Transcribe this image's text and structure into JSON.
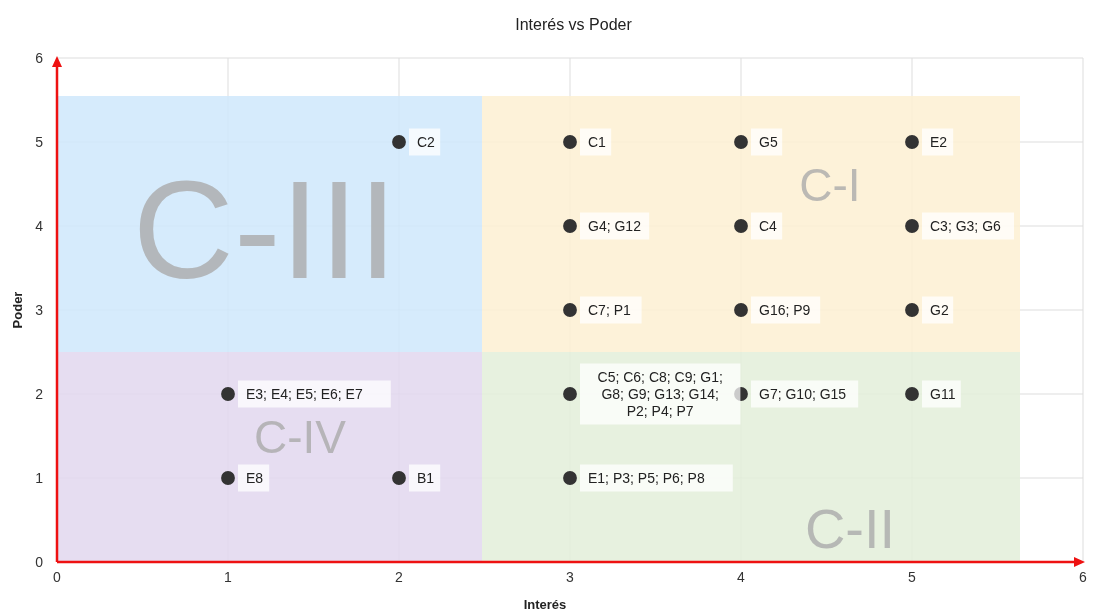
{
  "chart_data": {
    "type": "scatter",
    "title": "Interés vs Poder",
    "xlabel": "Interés",
    "ylabel": "Poder",
    "xlim": [
      0,
      6
    ],
    "ylim": [
      0,
      6
    ],
    "xticks": [
      0,
      1,
      2,
      3,
      4,
      5,
      6
    ],
    "yticks": [
      0,
      1,
      2,
      3,
      4,
      5,
      6
    ],
    "grid": true,
    "marker": "circle",
    "annotations": [
      "C-III",
      "C-I",
      "C-IV",
      "C-II"
    ],
    "series": [
      {
        "color": "#333333",
        "x": [
          2,
          3,
          4,
          5,
          3,
          4,
          5,
          3,
          4,
          5,
          1,
          3,
          4,
          5,
          1,
          2,
          3
        ],
        "values": [
          5,
          5,
          5,
          5,
          4,
          4,
          4,
          3,
          3,
          3,
          2,
          2,
          2,
          2,
          1,
          1,
          1
        ],
        "value_labels": [
          "C2",
          "C1",
          "G5",
          "E2",
          "G4; G12",
          "C4",
          "C3; G3; G6",
          "C7; P1",
          "G16; P9",
          "G2",
          "E3; E4; E5; E6; E7",
          "C5; C6; C8; C9; G1; G8; G9; G13; G14; P2; P4; P7",
          "G7; G10; G15",
          "G11",
          "E8",
          "B1",
          "E1; P3; P5; P6; P8"
        ]
      }
    ]
  }
}
